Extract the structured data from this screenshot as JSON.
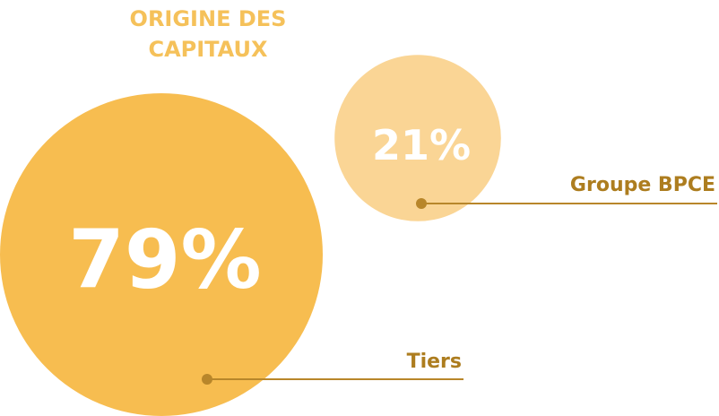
{
  "chart_data": {
    "type": "bubble",
    "title": "ORIGINE DES CAPITAUX",
    "categories": [
      "Tiers",
      "Groupe BPCE"
    ],
    "values": [
      79,
      21
    ],
    "value_labels": [
      "79%",
      "21%"
    ],
    "colors": [
      "#f7bd50",
      "#fad595"
    ]
  }
}
